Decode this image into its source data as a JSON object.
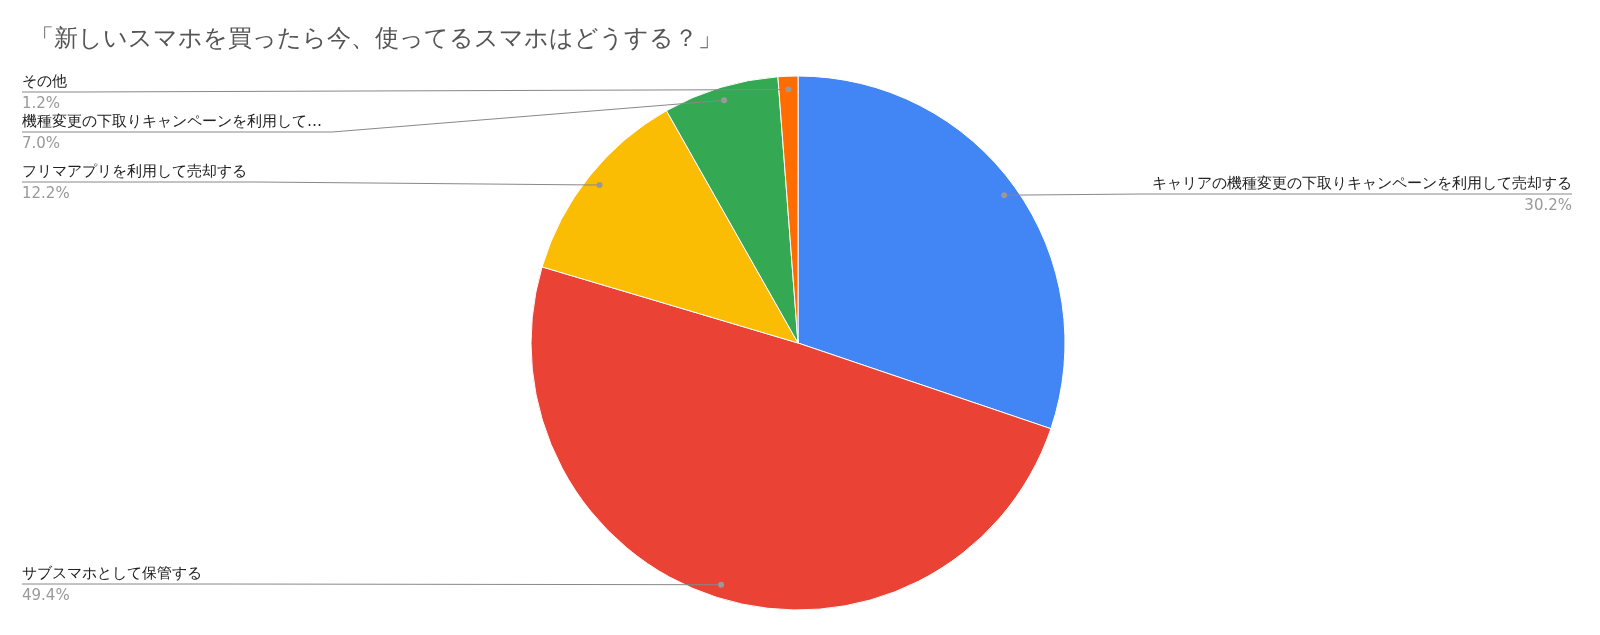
{
  "chart_data": {
    "type": "pie",
    "title": "「新しいスマホを買ったら今、使ってるスマホはどうする？」",
    "categories": [
      "キャリアの機種変更の下取りキャンペーンを利用して売却する",
      "サブスマホとして保管する",
      "フリマアプリを利用して売却する",
      "機種変更の下取りキャンペーンを利用して…",
      "その他"
    ],
    "values": [
      30.2,
      49.4,
      12.2,
      7.0,
      1.2
    ],
    "colors": [
      "#4285f4",
      "#ea4335",
      "#fbbc04",
      "#34a853",
      "#ff6d01"
    ],
    "value_labels": [
      "30.2%",
      "49.4%",
      "12.2%",
      "7.0%",
      "1.2%"
    ],
    "legend": false
  }
}
